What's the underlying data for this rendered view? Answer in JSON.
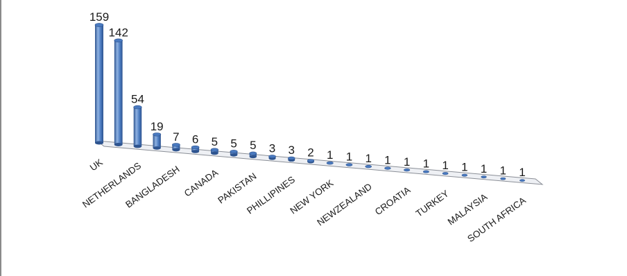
{
  "chart_data": {
    "type": "bar",
    "style": "3d-cylinder",
    "title": "",
    "xlabel": "",
    "ylabel": "",
    "categories": [
      "UK",
      "",
      "NETHERLANDS",
      "",
      "BANGLADESH",
      "",
      "CANADA",
      "",
      "PAKISTAN",
      "",
      "PHILLIPINES",
      "",
      "NEW YORK",
      "",
      "NEWZEALAND",
      "",
      "CROATIA",
      "",
      "TURKEY",
      "",
      "MALAYSIA",
      "",
      "SOUTH AFRICA"
    ],
    "values": [
      159,
      142,
      54,
      19,
      7,
      6,
      5,
      5,
      5,
      3,
      3,
      2,
      1,
      1,
      1,
      1,
      1,
      1,
      1,
      1,
      1,
      1,
      1
    ],
    "ylim": [
      0,
      159
    ],
    "grid": false,
    "legend": "none",
    "colors": {
      "bar": "#4a7ac0",
      "bar_dark": "#2e548f",
      "bar_light": "#8fb2e2",
      "floor": "#eef0f4",
      "floor_edge": "#8a8e96"
    }
  }
}
